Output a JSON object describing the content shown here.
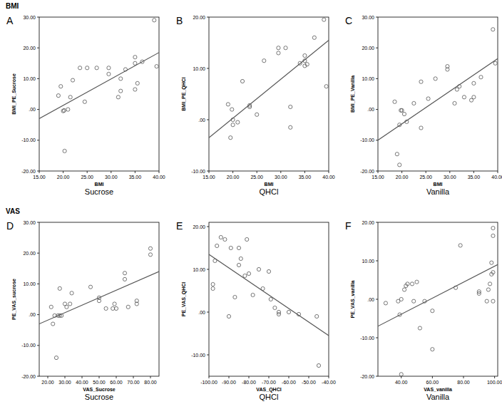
{
  "sections": [
    "BMI",
    "VAS"
  ],
  "chart_data": [
    {
      "type": "scatter",
      "panel": "A",
      "title": "Sucrose",
      "x_label": "BMI",
      "y_label": "BMI_PE_Sucrose",
      "marker": "open-circle",
      "color": "#555555",
      "xlim": [
        15,
        40
      ],
      "ylim": [
        -20,
        30
      ],
      "xticks": [
        {
          "value": 15,
          "label": "15.00"
        },
        {
          "value": 20,
          "label": "20.00"
        },
        {
          "value": 25,
          "label": "25.00"
        },
        {
          "value": 30,
          "label": "30.00"
        },
        {
          "value": 35,
          "label": "35.00"
        },
        {
          "value": 40,
          "label": "40.00"
        }
      ],
      "yticks": [
        {
          "value": -20,
          "label": "-20.00"
        },
        {
          "value": -10,
          "label": "-10.00"
        },
        {
          "value": 0,
          "label": ".00"
        },
        {
          "value": 10,
          "label": "10.00"
        },
        {
          "value": 20,
          "label": "20.00"
        },
        {
          "value": 30,
          "label": "30.00"
        }
      ],
      "x": [
        19,
        19.5,
        20,
        20.2,
        20.3,
        21,
        21.5,
        22,
        23.5,
        24.5,
        25,
        27,
        29.5,
        29.5,
        31.5,
        32,
        32,
        33,
        35,
        35,
        35,
        35.5,
        36.5,
        39,
        39.5
      ],
      "values": [
        4.5,
        7.5,
        -0.5,
        -0.3,
        -13.5,
        0,
        4,
        9.5,
        13.5,
        2.5,
        13.5,
        13.5,
        13.5,
        11.5,
        4,
        6,
        10,
        13,
        15,
        17,
        6.5,
        8.5,
        15.5,
        29,
        14
      ],
      "fit": {
        "x": [
          15,
          40
        ],
        "y": [
          -3,
          18.5
        ]
      }
    },
    {
      "type": "scatter",
      "panel": "B",
      "title": "QHCl",
      "x_label": "BMI",
      "y_label": "BMI_PE_QHCl",
      "marker": "open-circle",
      "color": "#555555",
      "xlim": [
        15,
        40
      ],
      "ylim": [
        -10,
        20
      ],
      "xticks": [
        {
          "value": 15,
          "label": "15.00"
        },
        {
          "value": 20,
          "label": "20.00"
        },
        {
          "value": 25,
          "label": "25.00"
        },
        {
          "value": 30,
          "label": "30.00"
        },
        {
          "value": 35,
          "label": "35.00"
        },
        {
          "value": 40,
          "label": "40.00"
        }
      ],
      "yticks": [
        {
          "value": -10,
          "label": "-10.00"
        },
        {
          "value": 0,
          "label": ".00"
        },
        {
          "value": 10,
          "label": "10.00"
        },
        {
          "value": 20,
          "label": "20.00"
        }
      ],
      "x": [
        19,
        19.5,
        19.8,
        20,
        20,
        21,
        22,
        23.5,
        23.5,
        25,
        26.5,
        29.5,
        29.5,
        31,
        32,
        32,
        34,
        35,
        35,
        35,
        35.5,
        37,
        39,
        39.5
      ],
      "values": [
        3,
        -3.5,
        2,
        0,
        -1,
        -0.5,
        7.5,
        2.8,
        2.5,
        1,
        11.5,
        13,
        14,
        14,
        2.5,
        -1.5,
        11,
        10.5,
        12.5,
        11.5,
        10.8,
        16,
        19.5,
        6.5
      ],
      "fit": {
        "x": [
          15,
          40
        ],
        "y": [
          -3.5,
          15.5
        ]
      }
    },
    {
      "type": "scatter",
      "panel": "C",
      "title": "Vanilla",
      "x_label": "BMI",
      "y_label": "BMI_PE_Vanilla",
      "marker": "open-circle",
      "color": "#555555",
      "xlim": [
        15,
        40
      ],
      "ylim": [
        -20,
        30
      ],
      "xticks": [
        {
          "value": 15,
          "label": "15.00"
        },
        {
          "value": 20,
          "label": "20.00"
        },
        {
          "value": 25,
          "label": "25.00"
        },
        {
          "value": 30,
          "label": "30.00"
        },
        {
          "value": 35,
          "label": "35.00"
        },
        {
          "value": 40,
          "label": "40.00"
        }
      ],
      "yticks": [
        {
          "value": -20,
          "label": "-20.00"
        },
        {
          "value": -10,
          "label": "-10.00"
        },
        {
          "value": 0,
          "label": ".00"
        },
        {
          "value": 10,
          "label": "10.00"
        },
        {
          "value": 20,
          "label": "20.00"
        },
        {
          "value": 30,
          "label": "30.00"
        }
      ],
      "x": [
        18.5,
        19,
        19.5,
        19.5,
        19.8,
        20,
        20.5,
        21,
        22.5,
        24,
        24,
        25.5,
        27,
        29.5,
        29.5,
        31,
        31.5,
        32,
        33,
        34.5,
        35,
        35,
        36.5,
        39,
        39.5
      ],
      "values": [
        2.5,
        -14.5,
        -5,
        -18,
        -0.3,
        -0.3,
        -1.5,
        -4,
        2,
        9,
        -6,
        3.5,
        10,
        13,
        14,
        2,
        6.5,
        7.5,
        4,
        3,
        8.5,
        4,
        10.5,
        26,
        15
      ],
      "fit": {
        "x": [
          15,
          40
        ],
        "y": [
          -10,
          16.5
        ]
      }
    },
    {
      "type": "scatter",
      "panel": "D",
      "title": "Sucrose",
      "x_label": "VAS_Sucrose",
      "y_label": "PE_VAS_sucrose",
      "marker": "open-circle",
      "color": "#555555",
      "xlim": [
        15,
        85
      ],
      "ylim": [
        -20,
        30
      ],
      "xticks": [
        {
          "value": 20,
          "label": "20.00"
        },
        {
          "value": 30,
          "label": "30.00"
        },
        {
          "value": 40,
          "label": "40.00"
        },
        {
          "value": 50,
          "label": "50.00"
        },
        {
          "value": 60,
          "label": "60.00"
        },
        {
          "value": 70,
          "label": "70.00"
        },
        {
          "value": 80,
          "label": "80.00"
        }
      ],
      "yticks": [
        {
          "value": -20,
          "label": "-20.00"
        },
        {
          "value": -10,
          "label": "-10.00"
        },
        {
          "value": 0,
          "label": ".00"
        },
        {
          "value": 10,
          "label": "10.00"
        },
        {
          "value": 20,
          "label": "20.00"
        },
        {
          "value": 30,
          "label": "30.00"
        }
      ],
      "x": [
        22,
        23,
        24,
        25,
        26,
        27,
        27,
        28,
        30,
        31,
        33,
        34,
        45,
        50,
        50,
        54,
        58,
        59,
        60,
        65,
        65,
        67,
        72,
        72,
        80,
        80
      ],
      "values": [
        2.5,
        -3,
        -0.3,
        -14,
        -0.3,
        -0.3,
        8.5,
        -0.3,
        3.5,
        2.5,
        3.5,
        7,
        9,
        4.5,
        5.5,
        2,
        2,
        3.5,
        2,
        11.5,
        13.5,
        2.5,
        3.5,
        4.5,
        19.5,
        21.5
      ],
      "fit": {
        "x": [
          15,
          85
        ],
        "y": [
          -3,
          14
        ]
      }
    },
    {
      "type": "scatter",
      "panel": "E",
      "title": "QHCl",
      "x_label": "VAS_QHCl",
      "y_label": "PE_VAS_QHCl",
      "marker": "open-circle",
      "color": "#555555",
      "xlim": [
        -100,
        -40
      ],
      "ylim": [
        -15,
        21
      ],
      "xticks": [
        {
          "value": -100,
          "label": "-100.00"
        },
        {
          "value": -90,
          "label": "-90.00"
        },
        {
          "value": -80,
          "label": "-80.00"
        },
        {
          "value": -70,
          "label": "-70.00"
        },
        {
          "value": -60,
          "label": "-60.00"
        },
        {
          "value": -50,
          "label": "-50.00"
        },
        {
          "value": -40,
          "label": "-40.00"
        }
      ],
      "yticks": [
        {
          "value": -10,
          "label": "-10.00"
        },
        {
          "value": 0,
          "label": ".00"
        },
        {
          "value": 10,
          "label": "10.00"
        },
        {
          "value": 20,
          "label": "20.00"
        }
      ],
      "x": [
        -98,
        -98,
        -97,
        -96,
        -94,
        -92,
        -90,
        -89,
        -87,
        -85,
        -85,
        -84,
        -82,
        -81,
        -80,
        -78,
        -75,
        -73,
        -70,
        -69,
        -67,
        -65,
        -65,
        -60,
        -55,
        -46,
        -45
      ],
      "values": [
        5.5,
        6.5,
        12,
        15.5,
        17.5,
        17,
        -1,
        15,
        3.5,
        15,
        11,
        12.5,
        8.5,
        17,
        9,
        4,
        10,
        5.5,
        9.5,
        3,
        1,
        0,
        -0.5,
        0,
        -0.5,
        -1,
        -12.5
      ],
      "fit": {
        "x": [
          -100,
          -40
        ],
        "y": [
          13.5,
          -5.5
        ]
      }
    },
    {
      "type": "scatter",
      "panel": "F",
      "title": "Vanilla",
      "x_label": "VAS_vanilla",
      "y_label": "PE_VAS_vanilla",
      "marker": "open-circle",
      "color": "#555555",
      "xlim": [
        25,
        102
      ],
      "ylim": [
        -20,
        20
      ],
      "xticks": [
        {
          "value": 40,
          "label": "40.00"
        },
        {
          "value": 60,
          "label": "60.00"
        },
        {
          "value": 80,
          "label": "80.00"
        },
        {
          "value": 100,
          "label": "100.00"
        }
      ],
      "yticks": [
        {
          "value": -20,
          "label": "-20.00"
        },
        {
          "value": -10,
          "label": "-10.00"
        },
        {
          "value": 0,
          "label": ".00"
        },
        {
          "value": 10,
          "label": "10.00"
        },
        {
          "value": 20,
          "label": "20.00"
        }
      ],
      "x": [
        30,
        38,
        39,
        40,
        40,
        42,
        43,
        44,
        47,
        48,
        50,
        52,
        55,
        60,
        60,
        75,
        78,
        90,
        90,
        95,
        96,
        97,
        98,
        98,
        99,
        99,
        99,
        99
      ],
      "values": [
        -1,
        -0.5,
        -4,
        -19.5,
        0,
        2.5,
        3.5,
        4,
        4,
        -0.5,
        4.5,
        -7.5,
        -0.5,
        -13,
        -3,
        3,
        14,
        2,
        1.5,
        -0.5,
        2.5,
        4,
        6.5,
        9.5,
        7,
        16.5,
        18.5,
        -0.5
      ],
      "fit": {
        "x": [
          25,
          102
        ],
        "y": [
          -7,
          9
        ]
      }
    }
  ]
}
